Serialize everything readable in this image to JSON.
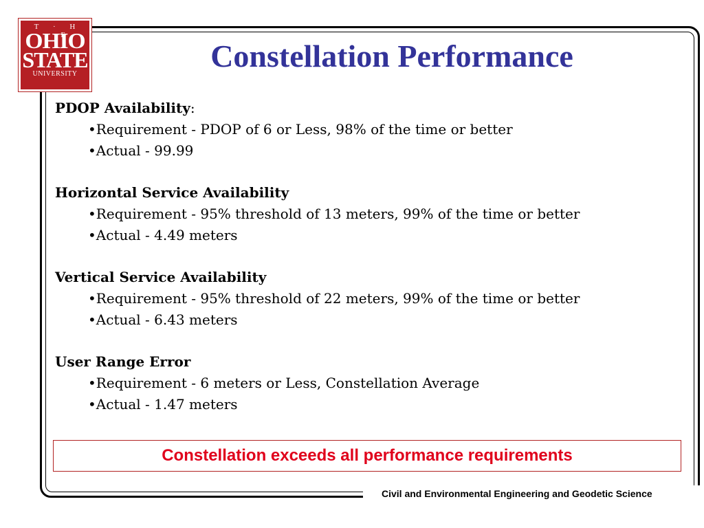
{
  "logo": {
    "line1": "T · H · E",
    "line2": "OHIO",
    "line3": "STATE",
    "line4": "UNIVERSITY",
    "color": "#b51f24"
  },
  "title": "Constellation Performance",
  "sections": [
    {
      "heading": "PDOP Availability",
      "heading_suffix": ":",
      "bullets": [
        "•Requirement - PDOP of 6 or Less, 98% of the time or better",
        "•Actual - 99.99"
      ]
    },
    {
      "heading": "Horizontal Service Availability",
      "heading_suffix": "",
      "bullets": [
        "•Requirement - 95% threshold of 13 meters, 99% of the time or better",
        "•Actual - 4.49 meters"
      ]
    },
    {
      "heading": "Vertical Service Availability",
      "heading_suffix": "",
      "bullets": [
        "•Requirement - 95% threshold of 22 meters, 99% of the time or better",
        "•Actual - 6.43 meters"
      ]
    },
    {
      "heading": "User Range Error",
      "heading_suffix": "",
      "bullets": [
        "•Requirement - 6 meters or Less, Constellation Average",
        "•Actual - 1.47 meters"
      ]
    }
  ],
  "callout": "Constellation exceeds all performance requirements",
  "footer": "Civil and Environmental Engineering and Geodetic Science",
  "colors": {
    "title": "#333399",
    "callout_text": "#e0001b",
    "callout_border": "#b22222"
  }
}
